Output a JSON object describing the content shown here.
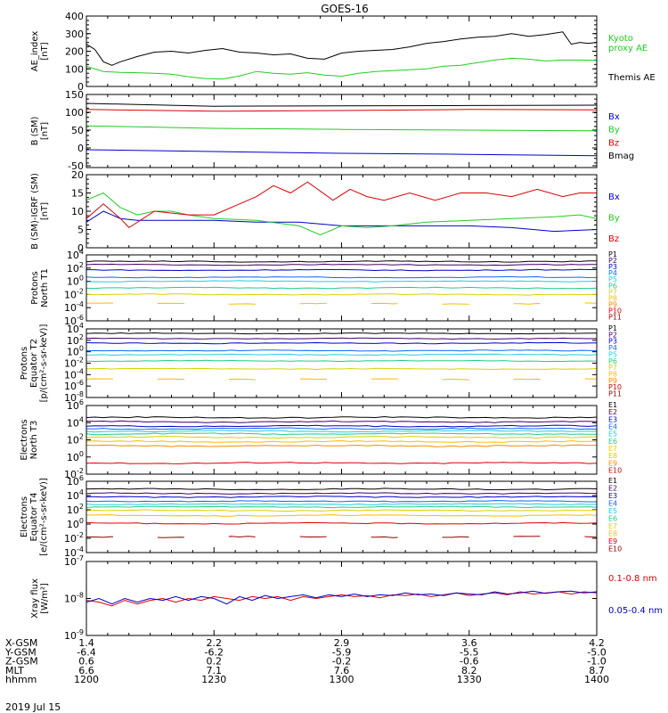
{
  "title": "GOES-16",
  "date": "2019 Jul 15",
  "colors": {
    "black": "#000000",
    "green": "#22cc22",
    "red": "#dd0000",
    "blue": "#0000cc"
  },
  "chart_data": [
    {
      "id": "ae",
      "type": "line",
      "ylabel": [
        "AE_index",
        "[nT]"
      ],
      "ylim": [
        0,
        400
      ],
      "yticks": [
        "0",
        "100",
        "200",
        "300",
        "400"
      ],
      "series": [
        {
          "name": "Kyoto\nproxy AE",
          "color": "#22cc22",
          "x": [
            0,
            4,
            8,
            12,
            16,
            20,
            24,
            28,
            32,
            36,
            40,
            44,
            48,
            52,
            56,
            60,
            64,
            68,
            72,
            76,
            80,
            84,
            88,
            92,
            96,
            100,
            104,
            108,
            112,
            116,
            120
          ],
          "values": [
            115,
            85,
            80,
            78,
            75,
            70,
            55,
            45,
            42,
            60,
            85,
            75,
            70,
            78,
            65,
            58,
            75,
            85,
            90,
            95,
            100,
            115,
            120,
            135,
            150,
            160,
            155,
            145,
            150,
            150,
            148
          ]
        },
        {
          "name": "Themis AE",
          "color": "#000000",
          "x": [
            0,
            2,
            4,
            6,
            8,
            12,
            16,
            20,
            24,
            28,
            32,
            36,
            40,
            44,
            48,
            52,
            56,
            60,
            64,
            68,
            72,
            76,
            80,
            84,
            88,
            92,
            96,
            100,
            104,
            108,
            112,
            114,
            116,
            118,
            120
          ],
          "values": [
            240,
            210,
            140,
            120,
            140,
            170,
            195,
            200,
            190,
            205,
            215,
            195,
            190,
            180,
            185,
            160,
            155,
            190,
            200,
            205,
            210,
            225,
            245,
            255,
            270,
            280,
            285,
            300,
            285,
            295,
            310,
            240,
            250,
            245,
            250
          ]
        }
      ]
    },
    {
      "id": "bsm",
      "type": "line",
      "ylabel": [
        "B (SM)",
        "[nT]"
      ],
      "ylim": [
        -55,
        150
      ],
      "yticks": [
        "-50",
        "0",
        "50",
        "100",
        "150"
      ],
      "series": [
        {
          "name": "Bx",
          "color": "#0000cc",
          "x": [
            0,
            30,
            60,
            90,
            120
          ],
          "values": [
            -5,
            -10,
            -15,
            -18,
            -22
          ]
        },
        {
          "name": "By",
          "color": "#22cc22",
          "x": [
            0,
            30,
            60,
            90,
            120
          ],
          "values": [
            62,
            55,
            52,
            50,
            48
          ]
        },
        {
          "name": "Bz",
          "color": "#dd0000",
          "x": [
            0,
            30,
            60,
            90,
            120
          ],
          "values": [
            108,
            103,
            105,
            108,
            107
          ]
        },
        {
          "name": "Bmag",
          "color": "#000000",
          "x": [
            0,
            30,
            60,
            90,
            120
          ],
          "values": [
            125,
            117,
            118,
            119,
            120
          ]
        }
      ]
    },
    {
      "id": "bdiff",
      "type": "line",
      "ylabel": [
        "B (SM)-IGRF (SM)",
        "[nT]"
      ],
      "ylim": [
        0,
        20
      ],
      "yticks": [
        "0",
        "5",
        "10",
        "15",
        "20"
      ],
      "series": [
        {
          "name": "Bx",
          "color": "#0000cc",
          "x": [
            0,
            4,
            8,
            12,
            20,
            30,
            40,
            50,
            60,
            70,
            80,
            90,
            100,
            110,
            120
          ],
          "values": [
            7,
            10,
            8,
            7.5,
            7.5,
            7.5,
            7,
            7,
            6,
            6,
            6,
            6,
            5.5,
            4.5,
            5
          ]
        },
        {
          "name": "By",
          "color": "#22cc22",
          "x": [
            0,
            4,
            8,
            12,
            16,
            20,
            24,
            30,
            40,
            50,
            55,
            60,
            66,
            72,
            80,
            90,
            100,
            110,
            116,
            120
          ],
          "values": [
            13,
            15,
            11,
            9,
            10,
            10,
            9,
            8,
            7.5,
            6,
            3.5,
            6,
            5.5,
            6,
            7,
            7.5,
            8,
            8.5,
            9,
            8
          ]
        },
        {
          "name": "Bz",
          "color": "#dd0000",
          "x": [
            0,
            4,
            8,
            10,
            16,
            24,
            30,
            36,
            40,
            44,
            48,
            52,
            58,
            62,
            66,
            70,
            76,
            82,
            88,
            94,
            100,
            106,
            112,
            116,
            120
          ],
          "values": [
            8,
            12,
            8,
            5.5,
            10,
            9,
            9,
            12,
            14,
            17,
            15,
            18,
            13,
            16,
            14,
            13,
            15,
            13,
            15,
            15,
            14,
            16,
            14,
            15,
            15
          ]
        }
      ]
    },
    {
      "id": "protons-north",
      "type": "line",
      "scale": "log",
      "ylabel": [
        "Protons",
        "North T1"
      ],
      "ylim": [
        -6,
        4
      ],
      "yticks": [
        [
          "10",
          "-6"
        ],
        [
          "10",
          "-4"
        ],
        [
          "10",
          "-2"
        ],
        [
          "10",
          "0"
        ],
        [
          "10",
          "2"
        ],
        [
          "10",
          "4"
        ]
      ],
      "series": [
        {
          "name": "P1",
          "color": "#000000",
          "level": 3.0
        },
        {
          "name": "P2",
          "color": "#440066",
          "level": 2.5
        },
        {
          "name": "P3",
          "color": "#0000cc",
          "level": 1.7
        },
        {
          "name": "P4",
          "color": "#1166ff",
          "level": 0.6
        },
        {
          "name": "P5",
          "color": "#22ccdd",
          "level": 0.0
        },
        {
          "name": "P6",
          "color": "#22cc88",
          "level": -1.0
        },
        {
          "name": "P7",
          "color": "#d4d400",
          "level": -2.0
        },
        {
          "name": "P8",
          "color": "#ffbb00",
          "level": -3.4,
          "dashed": true
        },
        {
          "name": "P9",
          "color": "#ff8800"
        },
        {
          "name": "P10",
          "color": "#dd0000"
        },
        {
          "name": "P11",
          "color": "#990000"
        }
      ]
    },
    {
      "id": "protons-equator",
      "type": "line",
      "scale": "log",
      "ylabel": [
        "Protons",
        "Equator T2",
        "[p/(cm²-s-sr-keV)]"
      ],
      "ylim": [
        -8,
        4
      ],
      "yticks": [
        [
          "10",
          "-8"
        ],
        [
          "10",
          "-6"
        ],
        [
          "10",
          "-4"
        ],
        [
          "10",
          "-2"
        ],
        [
          "10",
          "0"
        ],
        [
          "10",
          "2"
        ],
        [
          "10",
          "4"
        ]
      ],
      "series": [
        {
          "name": "P1",
          "color": "#000000",
          "level": 3.2
        },
        {
          "name": "P2",
          "color": "#440066",
          "level": 2.3
        },
        {
          "name": "P3",
          "color": "#0000cc",
          "level": 1.5
        },
        {
          "name": "P4",
          "color": "#1166ff",
          "level": 0.2
        },
        {
          "name": "P5",
          "color": "#22ccdd",
          "level": -0.5
        },
        {
          "name": "P6",
          "color": "#22cc88",
          "level": -1.6
        },
        {
          "name": "P7",
          "color": "#d4d400",
          "level": -3.0
        },
        {
          "name": "P8",
          "color": "#ffbb00",
          "level": -4.8,
          "dashed": true
        },
        {
          "name": "P9",
          "color": "#ff8800"
        },
        {
          "name": "P10",
          "color": "#dd0000"
        },
        {
          "name": "P11",
          "color": "#990000"
        }
      ]
    },
    {
      "id": "electrons-north",
      "type": "line",
      "scale": "log",
      "ylabel": [
        "Electrons",
        "North T3"
      ],
      "ylim": [
        -2,
        6
      ],
      "yticks": [
        [
          "10",
          "-2"
        ],
        [
          "10",
          "0"
        ],
        [
          "10",
          "2"
        ],
        [
          "10",
          "4"
        ],
        [
          "10",
          "6"
        ]
      ],
      "series": [
        {
          "name": "E1",
          "color": "#000000",
          "level": 4.6
        },
        {
          "name": "E2",
          "color": "#440066",
          "level": 4.1
        },
        {
          "name": "E3",
          "color": "#0000cc",
          "level": 3.6
        },
        {
          "name": "E4",
          "color": "#1166ff",
          "level": 3.3
        },
        {
          "name": "E5",
          "color": "#22ccdd",
          "level": 3.0
        },
        {
          "name": "E6",
          "color": "#22cc88",
          "level": 2.7
        },
        {
          "name": "E7",
          "color": "#d4d400",
          "level": 2.3
        },
        {
          "name": "E8",
          "color": "#ffbb00",
          "level": 1.8
        },
        {
          "name": "E9",
          "color": "#ff8800",
          "level": 1.3
        },
        {
          "name": "E10",
          "color": "#dd0000",
          "level": -0.7
        }
      ]
    },
    {
      "id": "electrons-equator",
      "type": "line",
      "scale": "log",
      "ylabel": [
        "Electrons",
        "Equator T4",
        "[e/(cm²-s-sr-keV)]"
      ],
      "ylim": [
        -4,
        6
      ],
      "yticks": [
        [
          "10",
          "-4"
        ],
        [
          "10",
          "-2"
        ],
        [
          "10",
          "0"
        ],
        [
          "10",
          "2"
        ],
        [
          "10",
          "4"
        ],
        [
          "10",
          "6"
        ]
      ],
      "series": [
        {
          "name": "E1",
          "color": "#000000",
          "level": 4.9
        },
        {
          "name": "E2",
          "color": "#440066",
          "level": 4.3
        },
        {
          "name": "E3",
          "color": "#0000cc",
          "level": 3.8
        },
        {
          "name": "E4",
          "color": "#1166ff",
          "level": 3.2
        },
        {
          "name": "E5",
          "color": "#22ccdd",
          "level": 2.8
        },
        {
          "name": "E6",
          "color": "#22cc88",
          "level": 2.4
        },
        {
          "name": "E7",
          "color": "#d4d400",
          "level": 1.9
        },
        {
          "name": "E8",
          "color": "#ffbb00",
          "level": 1.2
        },
        {
          "name": "E9",
          "color": "#dd0000",
          "level": 0.1
        },
        {
          "name": "E10",
          "color": "#990000",
          "level": -1.8,
          "dashed": true
        }
      ]
    },
    {
      "id": "xray",
      "type": "line",
      "scale": "log",
      "ylabel": [
        "Xray  flux",
        "[W/m²]"
      ],
      "ylim": [
        -9,
        -7
      ],
      "yticks": [
        [
          "10",
          "-9"
        ],
        [
          "10",
          "-8"
        ],
        [
          "10",
          "-7"
        ]
      ],
      "series": [
        {
          "name": "0.1-0.8 nm",
          "color": "#dd0000",
          "x": [
            0,
            3,
            6,
            9,
            12,
            15,
            18,
            21,
            24,
            27,
            30,
            33,
            36,
            39,
            42,
            45,
            48,
            51,
            54,
            57,
            60,
            63,
            66,
            69,
            72,
            75,
            78,
            81,
            84,
            87,
            90,
            93,
            96,
            99,
            102,
            105,
            108,
            111,
            114,
            117,
            120
          ],
          "values": [
            -8.05,
            -8.1,
            -8.2,
            -8.05,
            -8.15,
            -8.05,
            -8.0,
            -8.1,
            -8.0,
            -8.05,
            -7.95,
            -8.0,
            -8.05,
            -7.95,
            -8.0,
            -7.95,
            -8.05,
            -7.95,
            -8.0,
            -7.95,
            -7.9,
            -7.95,
            -7.92,
            -7.98,
            -7.9,
            -7.92,
            -7.88,
            -7.95,
            -7.9,
            -7.85,
            -7.92,
            -7.88,
            -7.85,
            -7.9,
            -7.82,
            -7.88,
            -7.85,
            -7.82,
            -7.88,
            -7.82,
            -7.85
          ]
        },
        {
          "name": "0.05-0.4 nm",
          "color": "#0000cc",
          "x": [
            0,
            3,
            6,
            9,
            12,
            15,
            18,
            21,
            24,
            27,
            30,
            33,
            36,
            39,
            42,
            45,
            48,
            51,
            54,
            57,
            60,
            63,
            66,
            69,
            72,
            75,
            78,
            81,
            84,
            87,
            90,
            93,
            96,
            99,
            102,
            105,
            108,
            111,
            114,
            117,
            120
          ],
          "values": [
            -8.1,
            -8.0,
            -8.15,
            -8.0,
            -8.1,
            -8.0,
            -8.05,
            -7.95,
            -8.05,
            -7.95,
            -8.0,
            -8.15,
            -7.95,
            -8.05,
            -7.92,
            -8.0,
            -7.95,
            -7.9,
            -7.98,
            -7.9,
            -7.95,
            -7.88,
            -7.95,
            -7.9,
            -7.92,
            -7.85,
            -7.9,
            -7.88,
            -7.92,
            -7.85,
            -7.88,
            -7.9,
            -7.82,
            -7.88,
            -7.85,
            -7.8,
            -7.86,
            -7.82,
            -7.8,
            -7.85,
            -7.82
          ]
        }
      ]
    }
  ],
  "ephemeris": {
    "labels": [
      "X-GSM",
      "Y-GSM",
      "Z-GSM",
      "MLT",
      "hhmm"
    ],
    "columns": [
      [
        "1.4",
        "-6.4",
        "0.6",
        "6.6",
        "1200"
      ],
      [
        "2.2",
        "-6.2",
        "0.2",
        "7.1",
        "1230"
      ],
      [
        "2.9",
        "-5.9",
        "-0.2",
        "7.6",
        "1300"
      ],
      [
        "3.6",
        "-5.5",
        "-0.6",
        "8.2",
        "1330"
      ],
      [
        "4.2",
        "-5.0",
        "-1.0",
        "8.7",
        "1400"
      ]
    ]
  }
}
